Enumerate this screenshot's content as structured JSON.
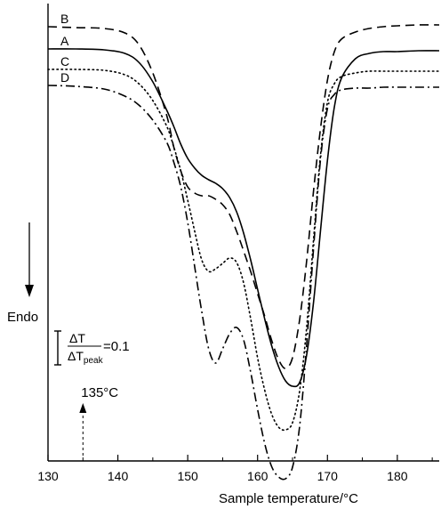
{
  "chart_data": {
    "type": "line",
    "title": "",
    "xlabel": "Sample temperature/°C",
    "ylabel": "Endo",
    "xlim": [
      130,
      186
    ],
    "x_ticks": [
      130,
      140,
      150,
      160,
      170,
      180
    ],
    "y_ticks": "none",
    "grid": false,
    "legend": "none",
    "annotations": {
      "scale_bar_label": "ΔT / ΔT_peak = 0.1",
      "scale_bar_numerator": "ΔT",
      "scale_bar_denominator": "ΔT",
      "scale_bar_denominator_sub": "peak",
      "scale_bar_value": "=0.1",
      "marker_label": "135°C",
      "marker_x": 135
    },
    "series": [
      {
        "name": "B",
        "style": "dashed",
        "x": [
          130,
          134,
          138,
          141,
          143,
          145,
          147,
          148,
          149,
          150,
          151,
          152,
          153,
          154,
          155,
          156,
          157,
          158,
          159,
          160,
          161,
          162,
          163,
          164,
          165,
          166,
          167,
          168,
          169,
          170,
          171,
          172,
          174,
          176,
          178,
          180,
          183,
          186
        ],
        "y": [
          0.1,
          0.11,
          0.12,
          0.17,
          0.3,
          0.62,
          1.1,
          1.45,
          1.72,
          1.9,
          1.97,
          2.0,
          2.0,
          2.04,
          2.1,
          2.21,
          2.4,
          2.62,
          2.85,
          3.1,
          3.35,
          3.62,
          3.84,
          3.94,
          3.82,
          3.4,
          2.75,
          1.95,
          1.25,
          0.7,
          0.38,
          0.24,
          0.16,
          0.12,
          0.1,
          0.09,
          0.08,
          0.08
        ]
      },
      {
        "name": "A",
        "style": "solid",
        "x": [
          130,
          134,
          138,
          141,
          143,
          145,
          147,
          148,
          149,
          150,
          151,
          152,
          153,
          154,
          155,
          156,
          157,
          158,
          159,
          160,
          161,
          162,
          163,
          164,
          165,
          166,
          167,
          168,
          169,
          170,
          171,
          172,
          174,
          176,
          178,
          180,
          183,
          186
        ],
        "y": [
          0.35,
          0.35,
          0.36,
          0.4,
          0.5,
          0.72,
          1.04,
          1.22,
          1.42,
          1.58,
          1.69,
          1.77,
          1.82,
          1.86,
          1.92,
          2.02,
          2.18,
          2.42,
          2.72,
          3.05,
          3.38,
          3.68,
          3.92,
          4.08,
          4.14,
          4.1,
          3.8,
          3.2,
          2.4,
          1.6,
          1.0,
          0.68,
          0.46,
          0.4,
          0.38,
          0.38,
          0.37,
          0.37
        ]
      },
      {
        "name": "C",
        "style": "dotted",
        "x": [
          130,
          134,
          138,
          141,
          143,
          145,
          147,
          148,
          149,
          150,
          151,
          152,
          153,
          154,
          155,
          156,
          157,
          158,
          159,
          160,
          161,
          162,
          163,
          164,
          165,
          166,
          167,
          168,
          169,
          170,
          171,
          172,
          174,
          176,
          178,
          180,
          183,
          186
        ],
        "y": [
          0.58,
          0.58,
          0.59,
          0.64,
          0.74,
          0.93,
          1.22,
          1.45,
          1.72,
          2.05,
          2.4,
          2.72,
          2.85,
          2.82,
          2.76,
          2.7,
          2.75,
          2.98,
          3.38,
          3.82,
          4.18,
          4.45,
          4.6,
          4.63,
          4.55,
          4.2,
          3.5,
          2.5,
          1.55,
          0.95,
          0.74,
          0.66,
          0.62,
          0.6,
          0.6,
          0.6,
          0.6,
          0.6
        ]
      },
      {
        "name": "D",
        "style": "dashdot",
        "x": [
          130,
          134,
          138,
          141,
          143,
          145,
          147,
          148,
          149,
          150,
          151,
          152,
          153,
          154,
          155,
          156,
          157,
          158,
          159,
          160,
          161,
          162,
          163,
          164,
          165,
          166,
          167,
          168,
          169,
          170,
          171,
          172,
          174,
          176,
          178,
          180,
          183,
          186
        ],
        "y": [
          0.76,
          0.77,
          0.8,
          0.88,
          0.98,
          1.15,
          1.4,
          1.62,
          1.9,
          2.3,
          2.8,
          3.3,
          3.72,
          3.88,
          3.72,
          3.55,
          3.48,
          3.62,
          3.98,
          4.4,
          4.78,
          5.04,
          5.16,
          5.18,
          5.05,
          4.6,
          3.7,
          2.6,
          1.6,
          1.02,
          0.86,
          0.81,
          0.79,
          0.79,
          0.78,
          0.78,
          0.78,
          0.78
        ]
      }
    ]
  }
}
